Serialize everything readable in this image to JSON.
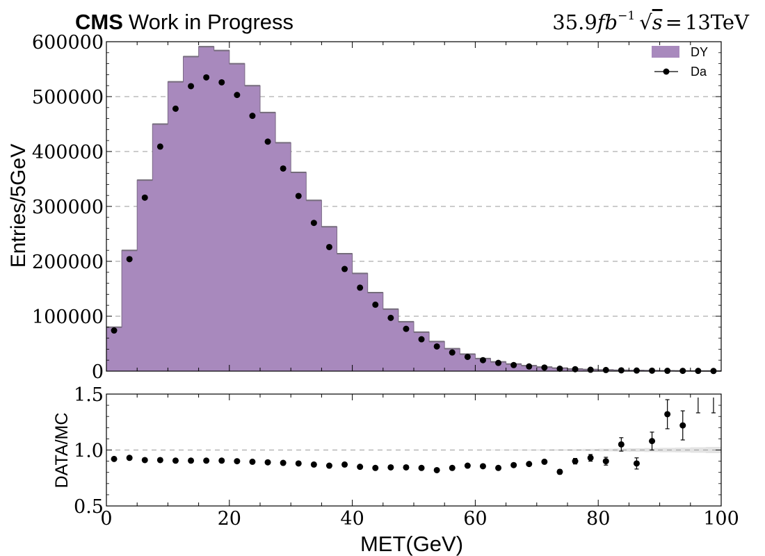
{
  "header": {
    "experiment": "CMS",
    "status": "Work in Progress",
    "luminosity": "35.9",
    "lumi_unit": "fb",
    "lumi_exp": "−1",
    "energy": "13TeV"
  },
  "chart_data": [
    {
      "type": "histogram",
      "panel": "main",
      "title": "CMS Work in Progress",
      "ylabel": "Entries/5GeV",
      "xlabel": "",
      "xlim": [
        0,
        100
      ],
      "ylim": [
        0,
        600000
      ],
      "bin_edges": [
        0,
        2.5,
        5,
        7.5,
        10,
        12.5,
        15,
        17.5,
        20,
        22.5,
        25,
        27.5,
        30,
        32.5,
        35,
        37.5,
        40,
        42.5,
        45,
        47.5,
        50,
        52.5,
        55,
        57.5,
        60,
        62.5,
        65,
        67.5,
        70,
        72.5,
        75,
        77.5,
        80,
        82.5,
        85,
        87.5,
        90,
        92.5,
        95,
        97.5,
        100
      ],
      "yticks": [
        0,
        100000,
        200000,
        300000,
        400000,
        500000,
        600000
      ],
      "ytick_labels": [
        "0",
        "100000",
        "200000",
        "300000",
        "400000",
        "500000",
        "600000"
      ],
      "grid": "dashed horizontal",
      "legend_position": "top-right",
      "series": [
        {
          "name": "DY",
          "kind": "stacked-histogram",
          "color": "#a889bd",
          "values": [
            80000,
            220000,
            348000,
            450000,
            527000,
            573000,
            591000,
            584000,
            560000,
            520000,
            471000,
            416000,
            362000,
            311000,
            263000,
            214000,
            178000,
            143000,
            113000,
            90000,
            71000,
            54000,
            41000,
            31000,
            23000,
            17000,
            13000,
            10000,
            7500,
            5500,
            4000,
            3000,
            2200,
            1600,
            1200,
            900,
            700,
            500,
            350,
            250
          ]
        },
        {
          "name": "Da",
          "kind": "points",
          "color": "#000000",
          "x": [
            1.25,
            3.75,
            6.25,
            8.75,
            11.25,
            13.75,
            16.25,
            18.75,
            21.25,
            23.75,
            26.25,
            28.75,
            31.25,
            33.75,
            36.25,
            38.75,
            41.25,
            43.75,
            46.25,
            48.75,
            51.25,
            53.75,
            56.25,
            58.75,
            61.25,
            63.75,
            66.25,
            68.75,
            71.25,
            73.75,
            76.25,
            78.75,
            81.25,
            83.75,
            86.25,
            88.75,
            91.25,
            93.75,
            96.25,
            98.75
          ],
          "values": [
            74000,
            204000,
            316000,
            409000,
            478000,
            519000,
            535000,
            526000,
            503000,
            465000,
            418000,
            369000,
            319000,
            270000,
            226000,
            186000,
            152000,
            121000,
            97000,
            77000,
            58000,
            45000,
            34000,
            26000,
            20000,
            15000,
            11000,
            8500,
            6500,
            4500,
            3500,
            2500,
            2000,
            1500,
            1100,
            800,
            600,
            500,
            400,
            300
          ]
        }
      ]
    },
    {
      "type": "scatter",
      "panel": "ratio",
      "ylabel": "DATA/MC",
      "xlabel": "MET(GeV)",
      "xlim": [
        0,
        100
      ],
      "ylim": [
        0.5,
        1.5
      ],
      "xticks": [
        0,
        20,
        40,
        60,
        80,
        100
      ],
      "xtick_labels": [
        "0",
        "20",
        "40",
        "60",
        "80",
        "100"
      ],
      "yticks": [
        0.5,
        1.0,
        1.5
      ],
      "ytick_labels": [
        "0.5",
        "1.0",
        "1.5"
      ],
      "uncertainty_band_color": "#e3e3e3",
      "band_halfwidth": [
        0,
        0,
        0,
        0,
        0,
        0,
        0,
        0,
        0,
        0,
        0,
        0,
        0,
        0,
        0,
        0,
        0,
        0,
        0,
        0,
        0,
        0,
        0,
        0,
        0.001,
        0.002,
        0.003,
        0.004,
        0.005,
        0.006,
        0.008,
        0.01,
        0.012,
        0.014,
        0.016,
        0.018,
        0.02,
        0.022,
        0.025,
        0.028
      ],
      "series": [
        {
          "name": "DATA/MC",
          "x": [
            1.25,
            3.75,
            6.25,
            8.75,
            11.25,
            13.75,
            16.25,
            18.75,
            21.25,
            23.75,
            26.25,
            28.75,
            31.25,
            33.75,
            36.25,
            38.75,
            41.25,
            43.75,
            46.25,
            48.75,
            51.25,
            53.75,
            56.25,
            58.75,
            61.25,
            63.75,
            66.25,
            68.75,
            71.25,
            73.75,
            76.25,
            78.75,
            81.25,
            83.75,
            86.25,
            88.75,
            91.25,
            93.75,
            96.25,
            98.75
          ],
          "values": [
            0.92,
            0.93,
            0.91,
            0.91,
            0.905,
            0.905,
            0.905,
            0.905,
            0.9,
            0.895,
            0.89,
            0.885,
            0.88,
            0.87,
            0.86,
            0.87,
            0.85,
            0.84,
            0.845,
            0.845,
            0.84,
            0.82,
            0.84,
            0.86,
            0.855,
            0.84,
            0.865,
            0.875,
            0.895,
            0.805,
            0.9,
            0.93,
            0.9,
            1.05,
            0.88,
            1.08,
            1.32,
            1.22,
            null,
            null
          ],
          "errors": [
            0.003,
            0.003,
            0.003,
            0.003,
            0.003,
            0.003,
            0.003,
            0.003,
            0.003,
            0.003,
            0.003,
            0.003,
            0.003,
            0.003,
            0.003,
            0.003,
            0.003,
            0.003,
            0.004,
            0.004,
            0.005,
            0.005,
            0.006,
            0.007,
            0.008,
            0.009,
            0.011,
            0.013,
            0.016,
            0.02,
            0.025,
            0.03,
            0.035,
            0.06,
            0.05,
            0.08,
            0.13,
            0.13,
            null,
            null
          ]
        }
      ]
    }
  ]
}
